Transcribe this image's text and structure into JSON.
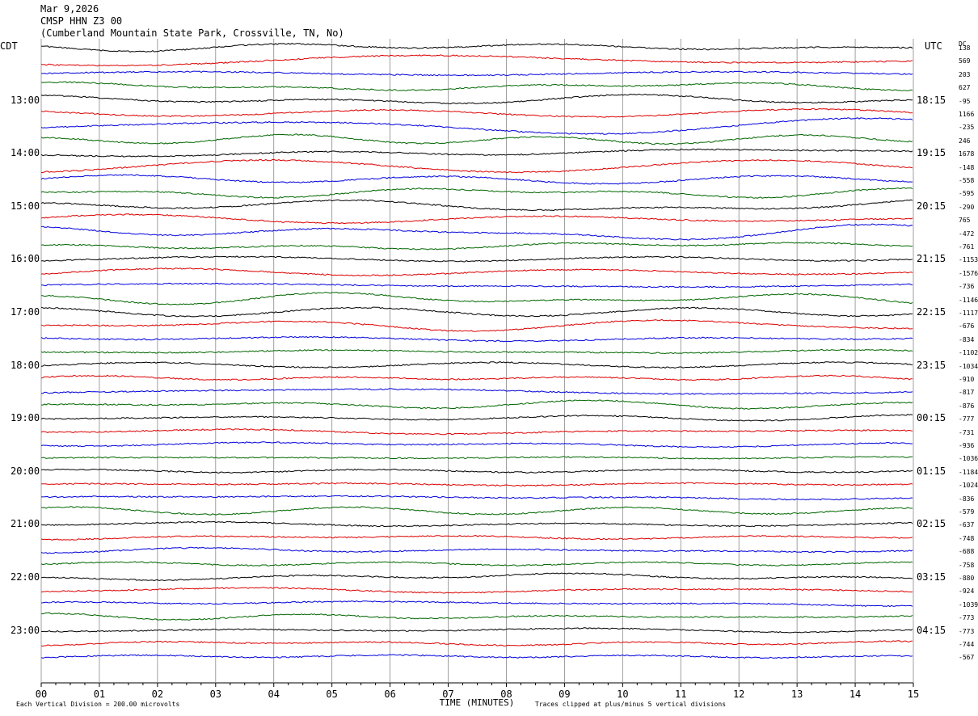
{
  "header": {
    "date": "Mar 9,2026",
    "station": "CMSP HHN Z3 00",
    "location": "(Cumberland Mountain State Park, Crossville, TN, No)"
  },
  "axis": {
    "left_tz": "CDT",
    "right_tz": "UTC",
    "dc_label": "DC",
    "xlabel": "TIME (MINUTES)"
  },
  "footer": {
    "scale_note": "Each Vertical Division =  200.00 microvolts",
    "clip_note": "Traces clipped at plus/minus 5 vertical divisions"
  },
  "chart_data": {
    "type": "line",
    "title": "CMSP HHN Z3 00",
    "xlabel": "TIME (MINUTES)",
    "x_ticks": [
      "00",
      "01",
      "02",
      "03",
      "04",
      "05",
      "06",
      "07",
      "08",
      "09",
      "10",
      "11",
      "12",
      "13",
      "14",
      "15"
    ],
    "xlim": [
      0,
      15
    ],
    "grid": true,
    "trace_colors": [
      "#000000",
      "#dd0000",
      "#0000dd",
      "#006600"
    ],
    "left_time_labels": [
      "13:00",
      "14:00",
      "15:00",
      "16:00",
      "17:00",
      "18:00",
      "19:00",
      "20:00",
      "21:00",
      "22:00",
      "23:00"
    ],
    "right_time_labels": [
      "18:15",
      "19:15",
      "20:15",
      "21:15",
      "22:15",
      "23:15",
      "00:15",
      "01:15",
      "02:15",
      "03:15",
      "04:15"
    ],
    "dc_offsets": [
      "138",
      "569",
      "203",
      "627",
      "-95",
      "1166",
      "-235",
      "246",
      "1678",
      "-148",
      "-558",
      "-595",
      "-290",
      "765",
      "-472",
      "-761",
      "-1153",
      "-1576",
      "-736",
      "-1146",
      "-1117",
      "-676",
      "-834",
      "-1102",
      "-1034",
      "-910",
      "-817",
      "-876",
      "-777",
      "-731",
      "-936",
      "-1036",
      "-1184",
      "-1024",
      "-836",
      "-579",
      "-637",
      "-748",
      "-688",
      "-758",
      "-880",
      "-924",
      "-1039",
      "-773",
      "-773",
      "-744",
      "-567"
    ]
  }
}
